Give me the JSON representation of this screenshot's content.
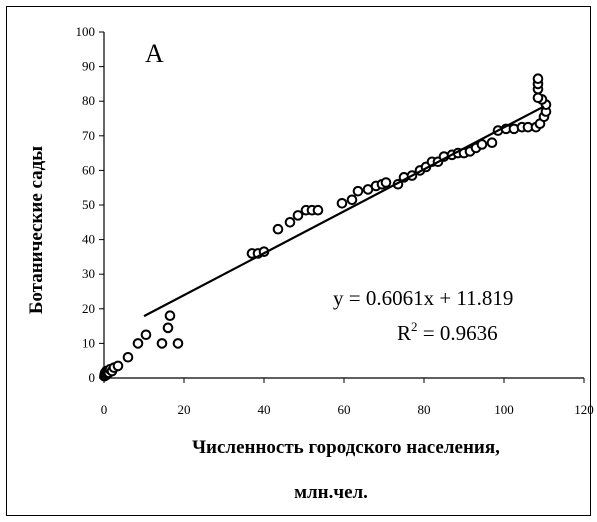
{
  "chart_data": {
    "type": "scatter",
    "panel_label": "A",
    "xlabel_line1": "Численность городского населения,",
    "xlabel_line2": "млн.чел.",
    "ylabel": "Ботанические сады",
    "xlim": [
      0,
      120
    ],
    "ylim": [
      0,
      100
    ],
    "x_ticks": [
      "0",
      "20",
      "40",
      "60",
      "80",
      "100",
      "120"
    ],
    "y_ticks": [
      "0",
      "10",
      "20",
      "30",
      "40",
      "50",
      "60",
      "70",
      "80",
      "90",
      "100"
    ],
    "grid": false,
    "legend": "none",
    "trendline": {
      "slope": 0.6061,
      "intercept": 11.819,
      "x_range": [
        10,
        110
      ],
      "equation": "y = 0.6061x + 11.819",
      "r2_label": "R",
      "r2_value": " = 0.9636",
      "r2_sup": "2"
    },
    "points": [
      [
        0.1,
        0.5
      ],
      [
        0.2,
        1.0
      ],
      [
        0.3,
        1.5
      ],
      [
        0.5,
        0.8
      ],
      [
        0.6,
        2.0
      ],
      [
        0.8,
        1.2
      ],
      [
        1.0,
        2.0
      ],
      [
        1.2,
        1.5
      ],
      [
        1.5,
        2.5
      ],
      [
        2.0,
        2.0
      ],
      [
        2.5,
        3.0
      ],
      [
        3.5,
        3.5
      ],
      [
        6.0,
        6.0
      ],
      [
        8.5,
        10.0
      ],
      [
        10.5,
        12.5
      ],
      [
        14.5,
        10.0
      ],
      [
        16.0,
        14.5
      ],
      [
        16.5,
        18.0
      ],
      [
        18.5,
        10.0
      ],
      [
        37.0,
        36.0
      ],
      [
        38.5,
        36.0
      ],
      [
        40.0,
        36.5
      ],
      [
        43.5,
        43.0
      ],
      [
        46.5,
        45.0
      ],
      [
        48.5,
        47.0
      ],
      [
        50.5,
        48.5
      ],
      [
        52.0,
        48.5
      ],
      [
        53.5,
        48.5
      ],
      [
        59.5,
        50.5
      ],
      [
        62.0,
        51.5
      ],
      [
        63.5,
        54.0
      ],
      [
        66.0,
        54.5
      ],
      [
        68.0,
        55.5
      ],
      [
        69.5,
        56.0
      ],
      [
        70.5,
        56.5
      ],
      [
        73.5,
        56.0
      ],
      [
        75.0,
        58.0
      ],
      [
        77.0,
        58.5
      ],
      [
        79.0,
        60.0
      ],
      [
        80.5,
        61.0
      ],
      [
        82.0,
        62.5
      ],
      [
        83.5,
        62.5
      ],
      [
        85.0,
        64.0
      ],
      [
        87.0,
        64.5
      ],
      [
        88.5,
        65.0
      ],
      [
        90.0,
        65.0
      ],
      [
        91.5,
        65.5
      ],
      [
        93.0,
        66.5
      ],
      [
        94.5,
        67.5
      ],
      [
        97.0,
        68.0
      ],
      [
        98.5,
        71.5
      ],
      [
        100.5,
        72.0
      ],
      [
        102.5,
        72.0
      ],
      [
        104.5,
        72.5
      ],
      [
        106.0,
        72.5
      ],
      [
        108.0,
        72.5
      ],
      [
        109.0,
        73.5
      ],
      [
        110.0,
        75.5
      ],
      [
        110.5,
        77.0
      ],
      [
        110.5,
        79.0
      ],
      [
        109.5,
        80.5
      ],
      [
        108.5,
        81.0
      ],
      [
        108.5,
        83.5
      ],
      [
        108.5,
        85.0
      ],
      [
        108.5,
        86.5
      ]
    ]
  }
}
